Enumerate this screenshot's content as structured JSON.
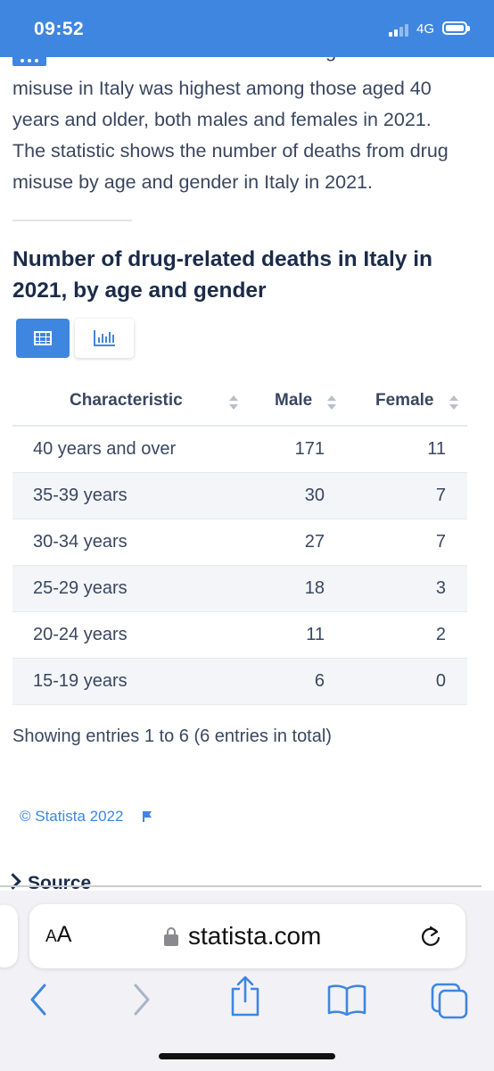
{
  "status_bar": {
    "time": "09:52",
    "network": "4G"
  },
  "article": {
    "clipped_line": "The number of deaths related to drug",
    "description": "misuse in Italy was highest among those aged 40 years and older, both males and females in 2021. The statistic shows the number of deaths from drug misuse by age and gender in Italy in 2021."
  },
  "chart": {
    "title": "Number of drug-related deaths in Italy in 2021, by age and gender"
  },
  "view_toggle": {
    "table_icon": "table-icon",
    "chart_icon": "bar-chart-icon"
  },
  "table": {
    "headers": [
      "Characteristic",
      "Male",
      "Female"
    ],
    "rows": [
      {
        "label": "40 years and over",
        "male": "171",
        "female": "11"
      },
      {
        "label": "35-39 years",
        "male": "30",
        "female": "7"
      },
      {
        "label": "30-34 years",
        "male": "27",
        "female": "7"
      },
      {
        "label": "25-29 years",
        "male": "18",
        "female": "3"
      },
      {
        "label": "20-24 years",
        "male": "11",
        "female": "2"
      },
      {
        "label": "15-19 years",
        "male": "6",
        "female": "0"
      }
    ],
    "entries_text": "Showing entries 1 to 6 (6 entries in total)"
  },
  "footer": {
    "copyright": "© Statista 2022",
    "source_label": "Source"
  },
  "browser": {
    "aa_label_big": "A",
    "aa_label_small": "A",
    "url": "statista.com"
  },
  "colors": {
    "accent": "#3f86e0",
    "text": "#3a4660",
    "title": "#1b2b4b"
  }
}
